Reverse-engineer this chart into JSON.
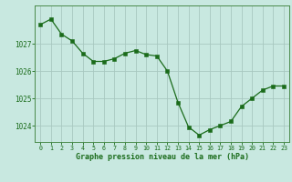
{
  "hours": [
    0,
    1,
    2,
    3,
    4,
    5,
    6,
    7,
    8,
    9,
    10,
    11,
    12,
    13,
    14,
    15,
    16,
    17,
    18,
    19,
    20,
    21,
    22,
    23
  ],
  "pressure": [
    1027.7,
    1027.9,
    1027.35,
    1027.1,
    1026.65,
    1026.35,
    1026.35,
    1026.45,
    1026.65,
    1026.75,
    1026.6,
    1026.55,
    1026.0,
    1024.85,
    1023.95,
    1023.65,
    1023.85,
    1024.0,
    1024.15,
    1024.7,
    1025.0,
    1025.3,
    1025.45,
    1025.45
  ],
  "line_color": "#1a6b1a",
  "marker_color": "#1a6b1a",
  "bg_color": "#c8e8e0",
  "grid_color": "#a8c8c0",
  "xlabel": "Graphe pression niveau de la mer (hPa)",
  "xlabel_color": "#1a6b1a",
  "tick_color": "#1a6b1a",
  "axis_color": "#4a8a4a",
  "ylim": [
    1023.4,
    1028.4
  ],
  "yticks": [
    1024,
    1025,
    1026,
    1027
  ],
  "xticks": [
    0,
    1,
    2,
    3,
    4,
    5,
    6,
    7,
    8,
    9,
    10,
    11,
    12,
    13,
    14,
    15,
    16,
    17,
    18,
    19,
    20,
    21,
    22,
    23
  ]
}
